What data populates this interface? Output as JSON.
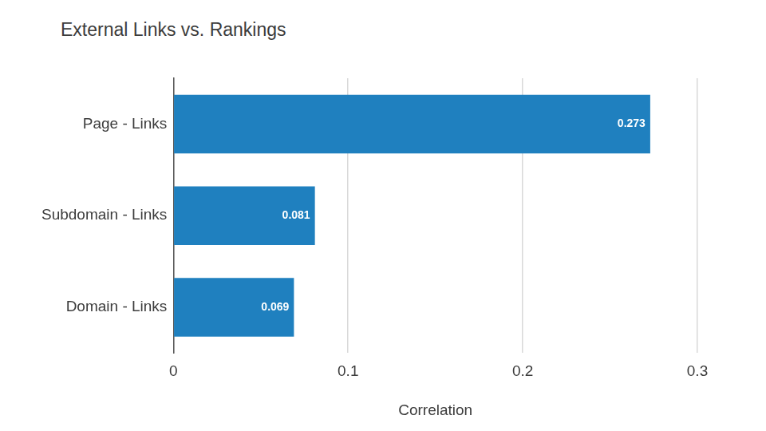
{
  "chart_data": {
    "type": "bar",
    "title": "External Links vs. Rankings",
    "orientation": "horizontal",
    "categories": [
      "Page - Links",
      "Subdomain - Links",
      "Domain - Links"
    ],
    "values": [
      0.273,
      0.081,
      0.069
    ],
    "color": "#1f80bf",
    "x_label": "Correlation",
    "xlim": [
      0,
      0.3
    ],
    "xticks": [
      0,
      0.1,
      0.2,
      0.3
    ],
    "grid": true,
    "data_labels": true
  }
}
